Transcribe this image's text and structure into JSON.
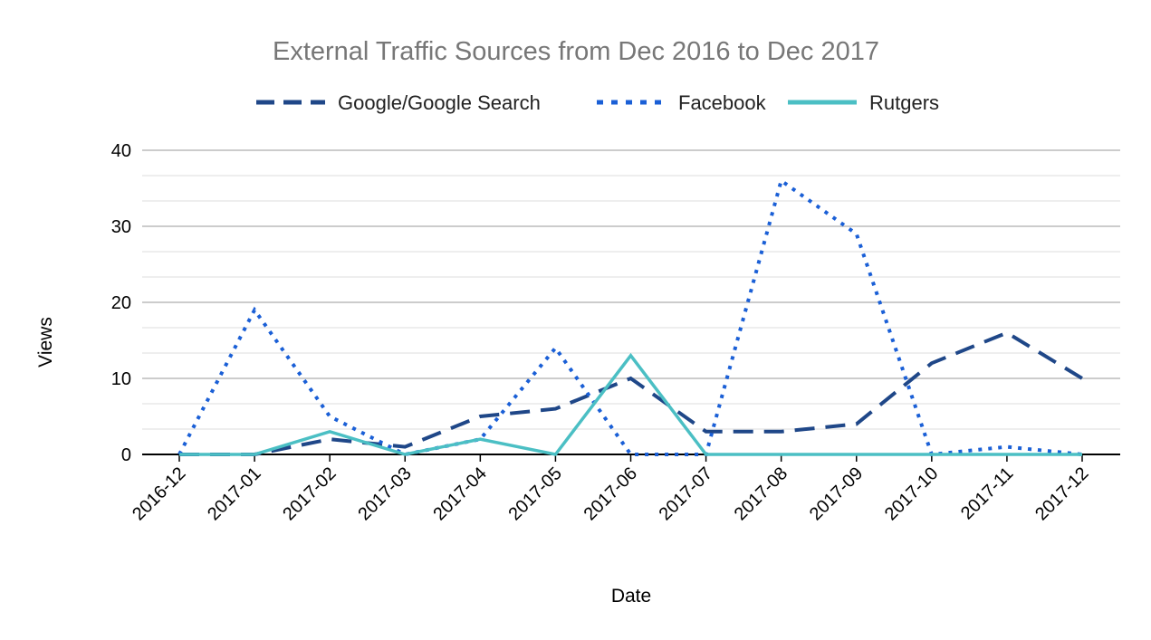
{
  "chart_data": {
    "type": "line",
    "title": "External Traffic Sources from Dec 2016 to Dec 2017",
    "xlabel": "Date",
    "ylabel": "Views",
    "ylim": [
      0,
      40
    ],
    "yticks": [
      0,
      10,
      20,
      30,
      40
    ],
    "grid": true,
    "legend_position": "top",
    "categories": [
      "2016-12",
      "2017-01",
      "2017-02",
      "2017-03",
      "2017-04",
      "2017-05",
      "2017-06",
      "2017-07",
      "2017-08",
      "2017-09",
      "2017-10",
      "2017-11",
      "2017-12"
    ],
    "series": [
      {
        "name": "Google/Google Search",
        "color": "#1f4788",
        "style": "dashed",
        "values": [
          0,
          0,
          2,
          1,
          5,
          6,
          10,
          3,
          3,
          4,
          12,
          16,
          10
        ]
      },
      {
        "name": "Facebook",
        "color": "#1a5fd6",
        "style": "dotted",
        "values": [
          0,
          19,
          5,
          0,
          2,
          14,
          0,
          0,
          36,
          29,
          0,
          1,
          0
        ]
      },
      {
        "name": "Rutgers",
        "color": "#4bbfc4",
        "style": "solid",
        "values": [
          0,
          0,
          3,
          0,
          2,
          0,
          13,
          0,
          0,
          0,
          0,
          0,
          0
        ]
      }
    ]
  }
}
